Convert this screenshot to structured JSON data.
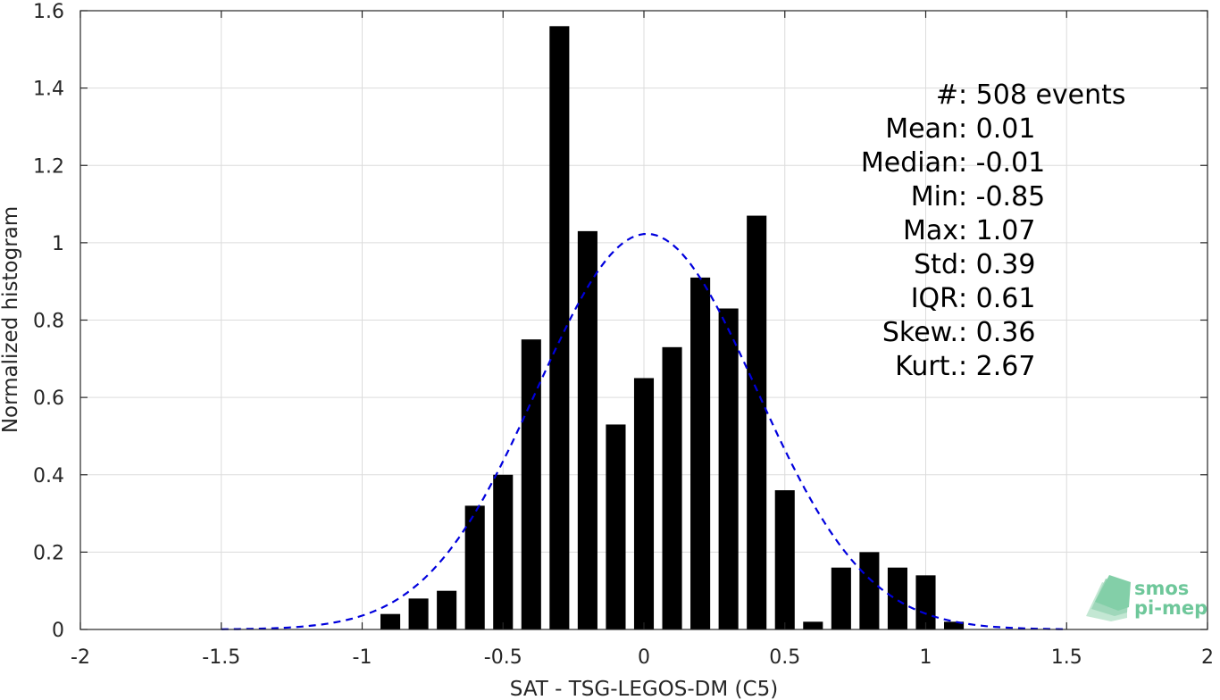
{
  "chart_data": {
    "type": "bar",
    "xlabel": "SAT - TSG-LEGOS-DM (C5)",
    "ylabel": "Normalized histogram",
    "xlim": [
      -2,
      2
    ],
    "ylim": [
      0,
      1.6
    ],
    "x_ticks": [
      -2,
      -1.5,
      -1,
      -0.5,
      0,
      0.5,
      1,
      1.5,
      2
    ],
    "x_tick_labels": [
      "-2",
      "-1.5",
      "-1",
      "-0.5",
      "0",
      "0.5",
      "1",
      "1.5",
      "2"
    ],
    "y_ticks": [
      0,
      0.2,
      0.4,
      0.6,
      0.8,
      1,
      1.2,
      1.4,
      1.6
    ],
    "y_tick_labels": [
      "0",
      "0.2",
      "0.4",
      "0.6",
      "0.8",
      "1",
      "1.2",
      "1.4",
      "1.6"
    ],
    "grid": true,
    "bar_color": "#000000",
    "bars": {
      "x": [
        -0.9,
        -0.8,
        -0.7,
        -0.6,
        -0.5,
        -0.4,
        -0.3,
        -0.2,
        -0.1,
        0.0,
        0.1,
        0.2,
        0.3,
        0.4,
        0.5,
        0.6,
        0.7,
        0.8,
        0.9,
        1.0,
        1.1
      ],
      "values": [
        0.04,
        0.08,
        0.1,
        0.32,
        0.4,
        0.75,
        1.56,
        1.03,
        0.53,
        0.65,
        0.73,
        0.91,
        0.83,
        1.07,
        0.36,
        0.02,
        0.16,
        0.2,
        0.16,
        0.14,
        0.02
      ],
      "width": 0.07
    },
    "fit_curve": {
      "style": "dashed",
      "color": "#0000dd",
      "mean": 0.01,
      "std": 0.39,
      "x_range": [
        -1.5,
        1.5
      ]
    },
    "annotation": {
      "lines": [
        "#  : 508 events",
        "Mean : 0.01",
        "Median : -0.01",
        "Min : -0.85",
        "Max : 1.07",
        "Std : 0.39",
        "IQR : 0.61",
        "Skew. : 0.36",
        "Kurt. : 2.67"
      ]
    }
  },
  "logo": {
    "line1": "smos",
    "line2": "pi-mep",
    "color": "#6ec79a"
  }
}
